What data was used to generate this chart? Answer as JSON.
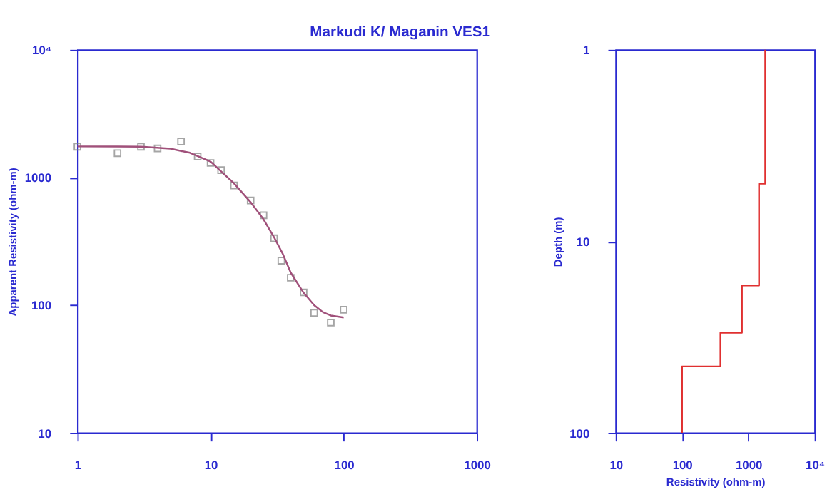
{
  "chart_data": [
    {
      "type": "line",
      "title": "Markudi K/ Maganin VES1",
      "ylabel": "Apparent Resistivity (ohm-m)",
      "log": "xy",
      "grid": false,
      "xlim": [
        1,
        1000
      ],
      "xticks": [
        1,
        10,
        100,
        1000
      ],
      "ylim": [
        10,
        10000
      ],
      "yticks": [
        {
          "value": 10000,
          "label": "10⁴"
        },
        1000,
        100,
        10
      ],
      "series": [
        {
          "type": "scatter",
          "marker": "square",
          "color": "#808080",
          "x": [
            1,
            2,
            3,
            4,
            6,
            8,
            10,
            12,
            15,
            20,
            25,
            30,
            34,
            40,
            50,
            60,
            80,
            100
          ],
          "values": [
            1740,
            1550,
            1740,
            1690,
            1910,
            1460,
            1300,
            1140,
            865,
            660,
            506,
            334,
            223,
            164,
            126,
            87,
            73,
            92
          ]
        },
        {
          "marker": "none",
          "color": "#a0507a",
          "x": [
            1,
            2,
            3,
            5,
            7,
            10,
            15,
            20,
            25,
            30,
            35,
            40,
            50,
            60,
            70,
            80,
            100
          ],
          "values": [
            1750,
            1748,
            1740,
            1680,
            1560,
            1330,
            900,
            640,
            470,
            340,
            250,
            180,
            125,
            100,
            88,
            83,
            80
          ]
        }
      ]
    },
    {
      "type": "line",
      "xlabel": "Resistivity (ohm-m)",
      "ylabel": "Depth (m)",
      "log": "xy",
      "grid": false,
      "xlim": [
        10,
        10000
      ],
      "xticks": [
        10,
        100,
        1000,
        {
          "value": 10000,
          "label": "10⁴"
        }
      ],
      "ylim": [
        100,
        1
      ],
      "yticks": [
        1,
        10,
        100
      ],
      "series": [
        {
          "marker": "none",
          "color": "#e03030",
          "x": [
            1800,
            1800,
            1450,
            1450,
            800,
            800,
            380,
            380,
            100,
            100
          ],
          "values": [
            1,
            5,
            5,
            17,
            17,
            30,
            30,
            45,
            45,
            100
          ]
        }
      ]
    }
  ]
}
